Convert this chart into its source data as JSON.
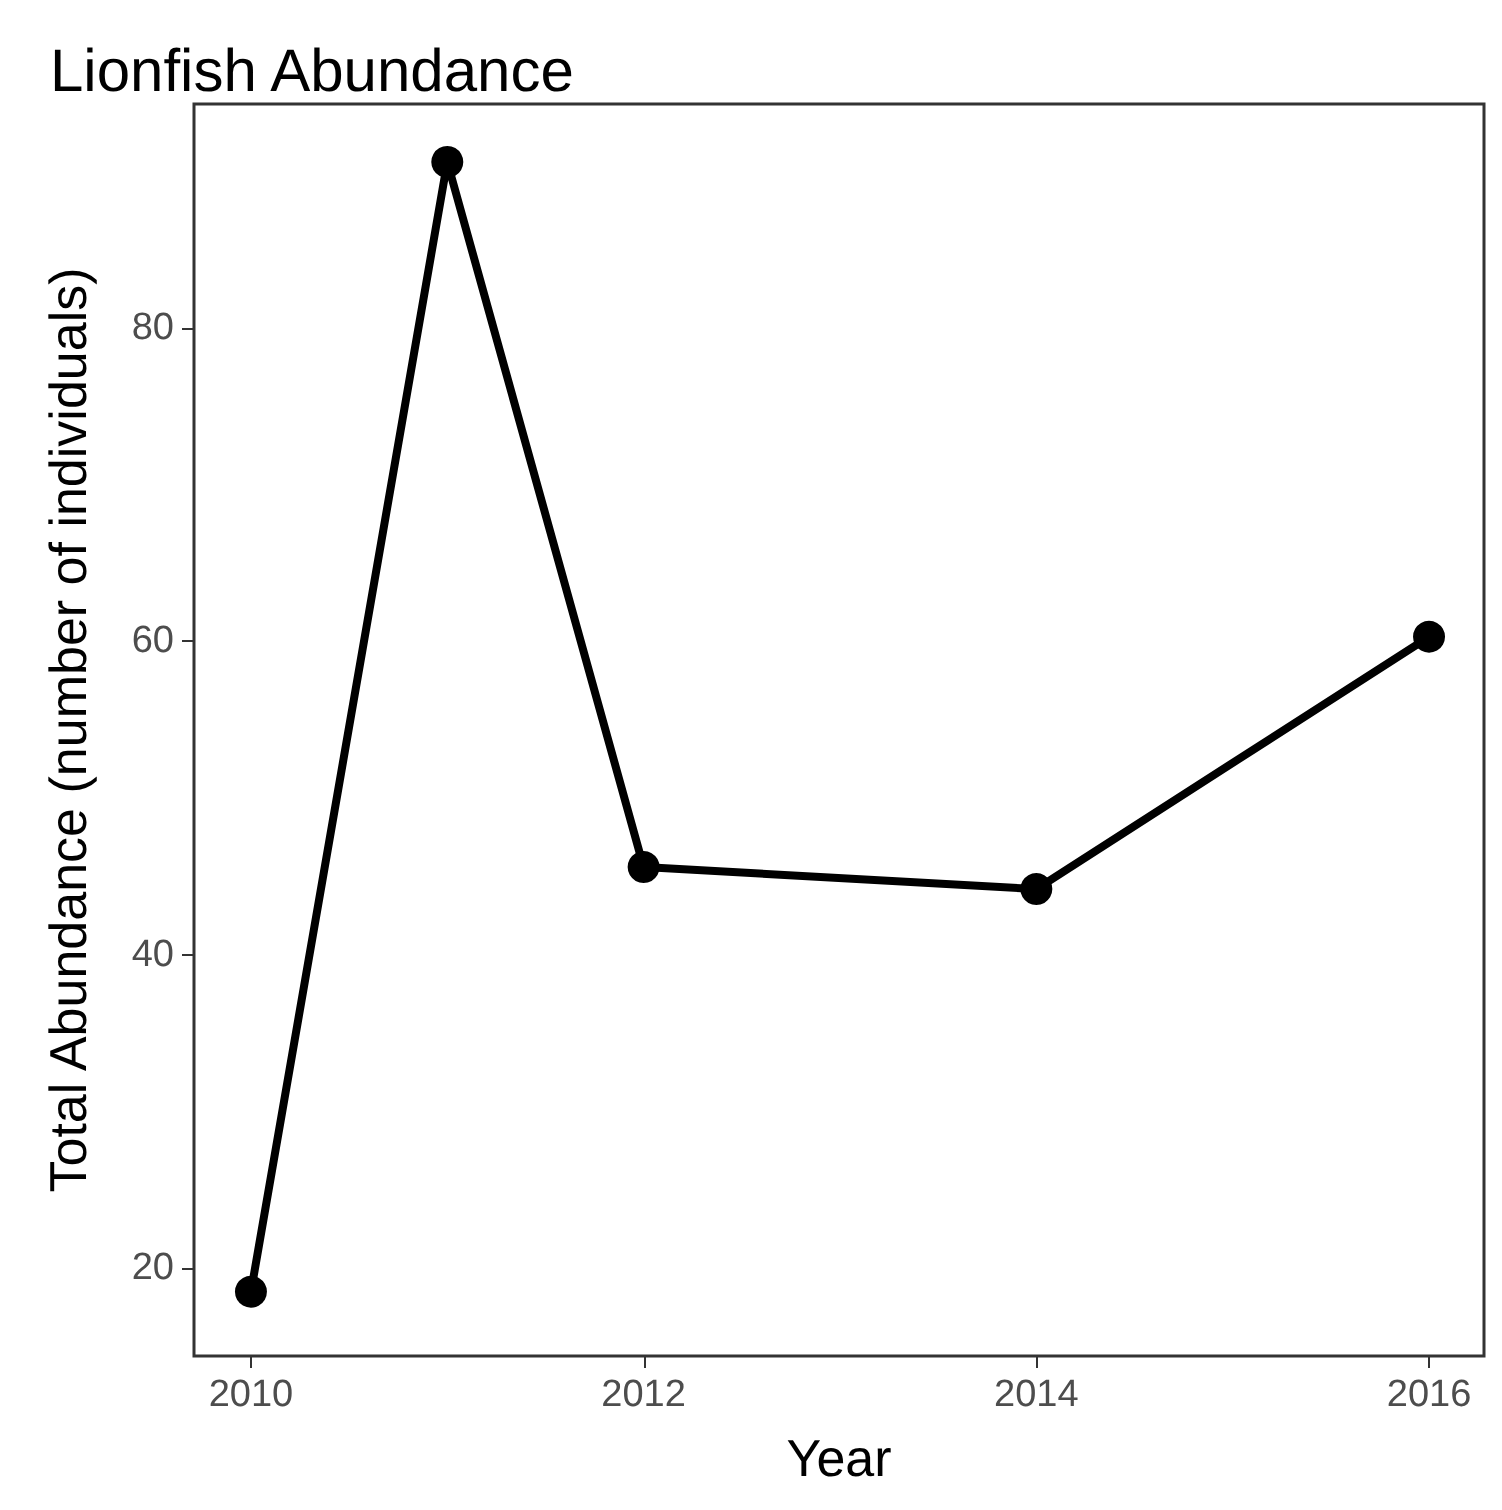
{
  "chart_data": {
    "type": "line",
    "title": "Lionfish Abundance",
    "xlabel": "Year",
    "ylabel": "Total Abundance (number of individuals)",
    "x": [
      2010,
      2011,
      2012,
      2014,
      2016
    ],
    "series": [
      {
        "color": "#000000",
        "values": [
          18.5,
          90.6,
          45.6,
          44.2,
          60.3
        ]
      }
    ],
    "xlim": [
      2009.71,
      2016.28
    ],
    "xticks": [
      2010,
      2012,
      2014,
      2016
    ],
    "ylim": [
      14.4,
      94.3
    ],
    "yticks": [
      20,
      40,
      60,
      80
    ],
    "grid": false,
    "marker": "circle",
    "line_style": "solid"
  }
}
